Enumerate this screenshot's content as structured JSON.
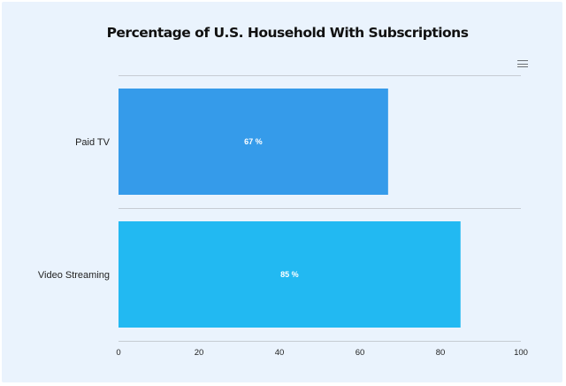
{
  "chart_data": {
    "type": "bar",
    "orientation": "horizontal",
    "title": "Percentage of U.S. Household With Subscriptions",
    "categories": [
      "Paid TV",
      "Video Streaming"
    ],
    "values": [
      67,
      85
    ],
    "data_labels": [
      "67 %",
      "85 %"
    ],
    "colors": [
      "#359bea",
      "#22b9f2"
    ],
    "xlim": [
      0,
      100
    ],
    "x_ticks": [
      "0",
      "20",
      "40",
      "60",
      "80",
      "100"
    ],
    "xlabel": "",
    "ylabel": "",
    "grid": true,
    "legend": "none"
  },
  "toolbar": {
    "menu_icon": "hamburger-menu-icon"
  }
}
